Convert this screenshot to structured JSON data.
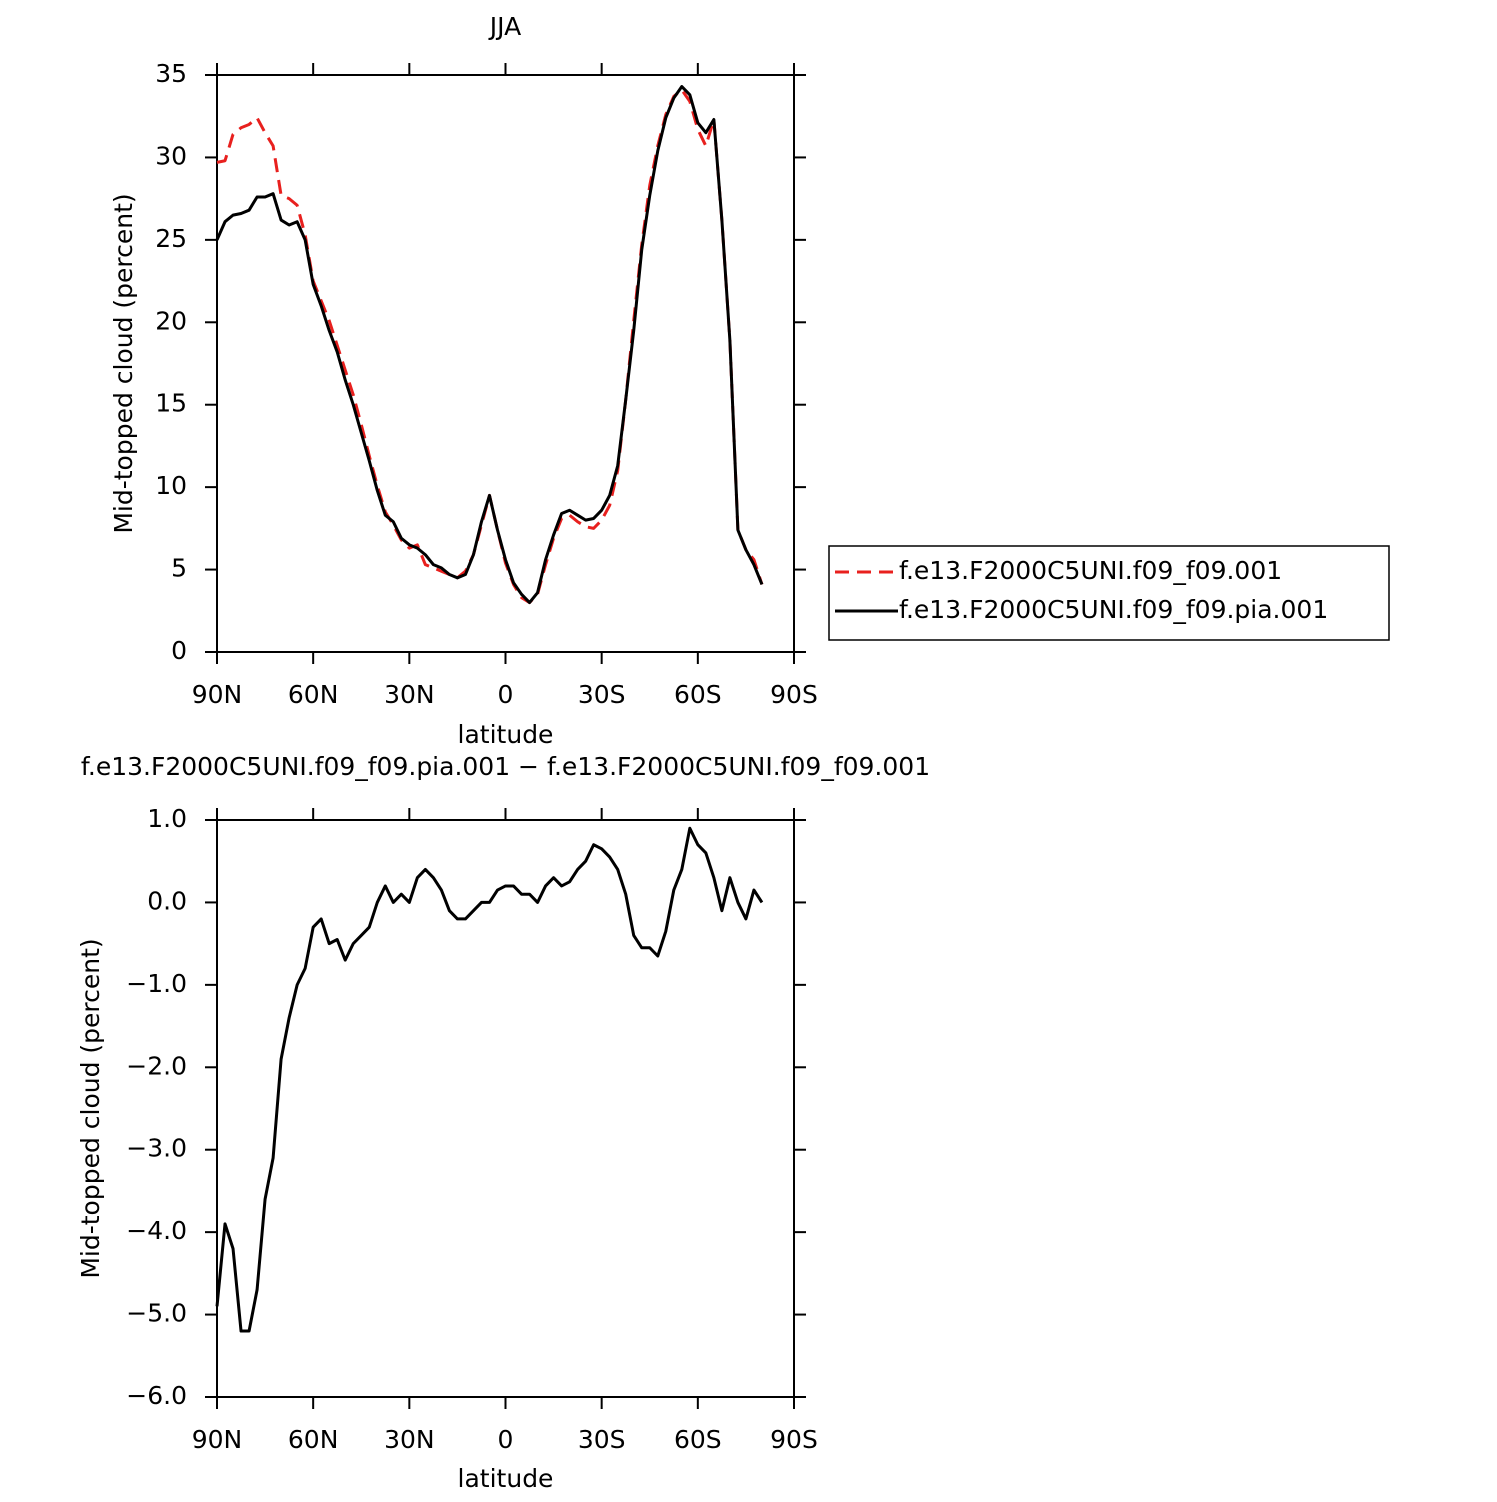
{
  "chart_data": [
    {
      "type": "line",
      "title": "JJA",
      "xlabel": "latitude",
      "ylabel": "Mid-topped cloud (percent)",
      "x": [
        90,
        87.5,
        85,
        82.5,
        80,
        77.5,
        75,
        72.5,
        70,
        67.5,
        65,
        62.5,
        60,
        57.5,
        55,
        52.5,
        50,
        47.5,
        45,
        42.5,
        40,
        37.5,
        35,
        32.5,
        30,
        27.5,
        25,
        22.5,
        20,
        17.5,
        15,
        12.5,
        10,
        7.5,
        5,
        2.5,
        0,
        -2.5,
        -5,
        -7.5,
        -10,
        -12.5,
        -15,
        -17.5,
        -20,
        -22.5,
        -25,
        -27.5,
        -30,
        -32.5,
        -35,
        -37.5,
        -40,
        -42.5,
        -45,
        -47.5,
        -50,
        -52.5,
        -55,
        -57.5,
        -60,
        -62.5,
        -65,
        -67.5,
        -70,
        -72.5,
        -75,
        -77.5,
        -80
      ],
      "series": [
        {
          "name": "f.e13.F2000C5UNI.f09_f09.001",
          "color": "#e8201e",
          "dash": "dashed",
          "values": [
            29.7,
            29.8,
            31.4,
            31.8,
            32.0,
            32.4,
            31.5,
            30.7,
            27.7,
            27.5,
            27.1,
            25.3,
            22.5,
            21.3,
            20.1,
            18.6,
            17.1,
            15.6,
            13.8,
            11.9,
            10.1,
            8.5,
            7.7,
            6.8,
            6.3,
            6.5,
            5.3,
            5.1,
            4.9,
            4.7,
            4.5,
            4.9,
            5.9,
            7.7,
            9.5,
            7.4,
            5.4,
            4.1,
            3.3,
            3.0,
            3.5,
            5.3,
            6.9,
            8.1,
            8.3,
            7.9,
            7.6,
            7.5,
            8.0,
            8.9,
            11.0,
            15.3,
            20.1,
            24.7,
            28.3,
            30.7,
            32.6,
            33.7,
            34.1,
            33.4,
            31.7,
            30.7,
            32.3,
            26.2,
            18.9,
            7.4,
            6.2,
            5.6,
            4.1
          ]
        },
        {
          "name": "f.e13.F2000C5UNI.f09_f09.pia.001",
          "color": "#000000",
          "dash": "solid",
          "values": [
            25.0,
            26.1,
            26.5,
            26.6,
            26.8,
            27.6,
            27.6,
            27.8,
            26.2,
            25.9,
            26.1,
            25.0,
            22.3,
            21.0,
            19.5,
            18.2,
            16.5,
            15.0,
            13.3,
            11.6,
            9.8,
            8.3,
            7.9,
            6.9,
            6.5,
            6.3,
            5.9,
            5.3,
            5.1,
            4.7,
            4.5,
            4.7,
            5.9,
            7.9,
            9.5,
            7.4,
            5.6,
            4.2,
            3.5,
            3.0,
            3.6,
            5.6,
            7.1,
            8.4,
            8.6,
            8.3,
            8.0,
            8.1,
            8.6,
            9.5,
            11.3,
            15.3,
            19.5,
            24.4,
            27.7,
            30.4,
            32.4,
            33.6,
            34.3,
            33.8,
            32.1,
            31.5,
            32.3,
            26.2,
            18.9,
            7.4,
            6.2,
            5.3,
            4.1
          ]
        }
      ],
      "xlim": [
        90,
        -90
      ],
      "xticks": [
        {
          "value": 90,
          "label": "90N"
        },
        {
          "value": 60,
          "label": "60N"
        },
        {
          "value": 30,
          "label": "30N"
        },
        0,
        {
          "value": -30,
          "label": "30S"
        },
        {
          "value": -60,
          "label": "60S"
        },
        {
          "value": -90,
          "label": "90S"
        }
      ],
      "ylim": [
        0,
        35
      ],
      "yticks": [
        0,
        5,
        10,
        15,
        20,
        25,
        30,
        35
      ],
      "legend": "right"
    },
    {
      "type": "line",
      "title": "f.e13.F2000C5UNI.f09_f09.pia.001 − f.e13.F2000C5UNI.f09_f09.001",
      "xlabel": "latitude",
      "ylabel": "Mid-topped cloud (percent)",
      "x": [
        90,
        87.5,
        85,
        82.5,
        80,
        77.5,
        75,
        72.5,
        70,
        67.5,
        65,
        62.5,
        60,
        57.5,
        55,
        52.5,
        50,
        47.5,
        45,
        42.5,
        40,
        37.5,
        35,
        32.5,
        30,
        27.5,
        25,
        22.5,
        20,
        17.5,
        15,
        12.5,
        10,
        7.5,
        5,
        2.5,
        0,
        -2.5,
        -5,
        -7.5,
        -10,
        -12.5,
        -15,
        -17.5,
        -20,
        -22.5,
        -25,
        -27.5,
        -30,
        -32.5,
        -35,
        -37.5,
        -40,
        -42.5,
        -45,
        -47.5,
        -50,
        -52.5,
        -55,
        -57.5,
        -60,
        -62.5,
        -65,
        -67.5,
        -70,
        -72.5,
        -75,
        -77.5,
        -80
      ],
      "series": [
        {
          "color": "#000000",
          "dash": "solid",
          "values": [
            -4.9,
            -3.9,
            -4.2,
            -5.2,
            -5.2,
            -4.7,
            -3.6,
            -3.1,
            -1.9,
            -1.4,
            -1.0,
            -0.8,
            -0.3,
            -0.2,
            -0.5,
            -0.45,
            -0.7,
            -0.5,
            -0.4,
            -0.3,
            0.0,
            0.2,
            0.0,
            0.1,
            0.0,
            0.3,
            0.4,
            0.3,
            0.15,
            -0.1,
            -0.2,
            -0.2,
            -0.1,
            0.0,
            0.0,
            0.15,
            0.2,
            0.2,
            0.1,
            0.1,
            0.0,
            0.2,
            0.3,
            0.2,
            0.25,
            0.4,
            0.5,
            0.7,
            0.65,
            0.55,
            0.4,
            0.1,
            -0.4,
            -0.55,
            -0.55,
            -0.65,
            -0.35,
            0.15,
            0.4,
            0.9,
            0.7,
            0.6,
            0.3,
            -0.1,
            0.3,
            0.0,
            -0.2,
            0.15,
            0.0
          ]
        }
      ],
      "xlim": [
        90,
        -90
      ],
      "xticks": [
        {
          "value": 90,
          "label": "90N"
        },
        {
          "value": 60,
          "label": "60N"
        },
        {
          "value": 30,
          "label": "30N"
        },
        0,
        {
          "value": -30,
          "label": "30S"
        },
        {
          "value": -60,
          "label": "60S"
        },
        {
          "value": -90,
          "label": "90S"
        }
      ],
      "ylim": [
        -6,
        1
      ],
      "yticks": [
        {
          "value": 1,
          "label": "1.0"
        },
        {
          "value": 0,
          "label": "0.0"
        },
        {
          "value": -1,
          "label": "−1.0"
        },
        {
          "value": -2,
          "label": "−2.0"
        },
        {
          "value": -3,
          "label": "−3.0"
        },
        {
          "value": -4,
          "label": "−4.0"
        },
        {
          "value": -5,
          "label": "−5.0"
        },
        {
          "value": -6,
          "label": "−6.0"
        }
      ]
    }
  ]
}
